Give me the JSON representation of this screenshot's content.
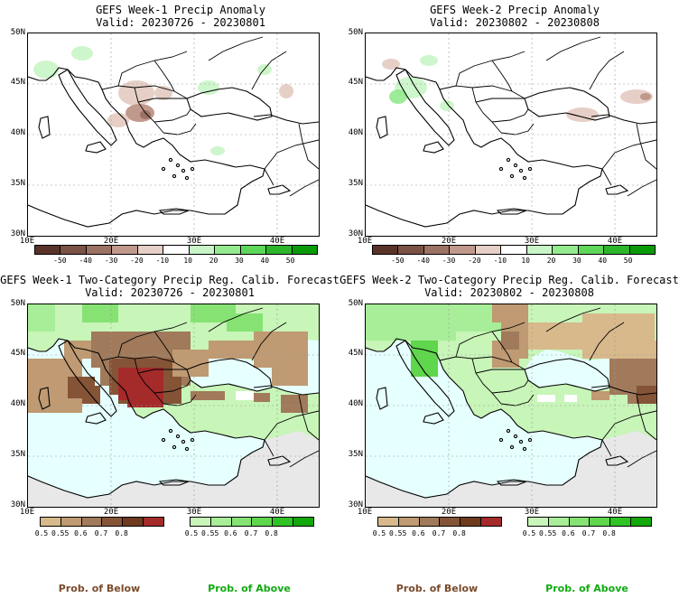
{
  "panels": [
    {
      "id": "w1-anom",
      "title": "GEFS Week-1 Precip Anomaly",
      "valid": "Valid: 20230726 - 20230801"
    },
    {
      "id": "w2-anom",
      "title": "GEFS Week-2 Precip Anomaly",
      "valid": "Valid: 20230802 - 20230808"
    },
    {
      "id": "w1-prob",
      "title": "GEFS Week-1 Two-Category Precip Reg. Calib. Forecast",
      "valid": "Valid: 20230726 - 20230801"
    },
    {
      "id": "w2-prob",
      "title": "GEFS Week-2 Two-Category Precip Reg. Calib. Forecast",
      "valid": "Valid: 20230802 - 20230808"
    }
  ],
  "lat_labels": [
    "50N",
    "45N",
    "40N",
    "35N",
    "30N"
  ],
  "lon_labels": [
    "10E",
    "20E",
    "30E",
    "40E"
  ],
  "anomaly_colorbar": {
    "ticks": [
      "-50",
      "-40",
      "-30",
      "-20",
      "-10",
      "10",
      "20",
      "30",
      "40",
      "50"
    ],
    "colors": [
      "#5a3328",
      "#7a5246",
      "#9c7264",
      "#c0998c",
      "#e6cfc6",
      "#ffffff",
      "#c9f5c6",
      "#93ea8f",
      "#5dd65a",
      "#2db52a",
      "#0a9a08"
    ]
  },
  "prob_below_colorbar": {
    "ticks": [
      "0.5",
      "0.55",
      "0.6",
      "0.7",
      "0.8"
    ],
    "colors": [
      "#d7b98b",
      "#bf9a72",
      "#a07a5b",
      "#855437",
      "#6f3a1e",
      "#a52a2a"
    ]
  },
  "prob_above_colorbar": {
    "ticks": [
      "0.5",
      "0.55",
      "0.6",
      "0.7",
      "0.8"
    ],
    "colors": [
      "#c8f5b8",
      "#a8ee98",
      "#86e373",
      "#5fd64c",
      "#2fc324",
      "#12a80a"
    ]
  },
  "legend": {
    "below": "Prob. of Below",
    "above": "Prob. of Above"
  },
  "colors": {
    "sea": "#e6ffff",
    "land_gray": "#e8e8e8",
    "below_text": "#7a4a2a",
    "above_text": "#11aa11"
  }
}
